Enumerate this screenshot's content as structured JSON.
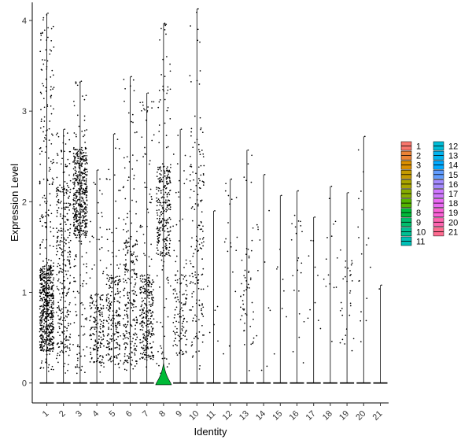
{
  "chart_data": {
    "type": "violin",
    "title": "",
    "xlabel": "Identity",
    "ylabel": "Expression Level",
    "categories": [
      "1",
      "2",
      "3",
      "4",
      "5",
      "6",
      "7",
      "8",
      "9",
      "10",
      "11",
      "12",
      "13",
      "14",
      "15",
      "16",
      "17",
      "18",
      "19",
      "20",
      "21"
    ],
    "ylim": [
      -0.22,
      4.2
    ],
    "yticks": [
      0,
      1,
      2,
      3,
      4
    ],
    "grid": false,
    "legend_position": "right",
    "colors": [
      "#F8766D",
      "#EB8335",
      "#DA8F00",
      "#C49A00",
      "#A9A400",
      "#86AC00",
      "#53B400",
      "#00BA38",
      "#00BE6C",
      "#00C094",
      "#00C0B7",
      "#00BCD6",
      "#00B4EF",
      "#00A9FF",
      "#619CFF",
      "#A58AFF",
      "#D078FF",
      "#EB6AF4",
      "#FB61D7",
      "#FF64B0",
      "#FF6C91"
    ],
    "violin_shape_note": "Cluster 8 violin shows a visible green bulge near 0; others collapse to a line at 0",
    "series": [
      {
        "name": "1",
        "max": 4.08,
        "n_points": 700,
        "dense_lo": 0.35,
        "dense_hi": 1.3
      },
      {
        "name": "2",
        "max": 2.8,
        "n_points": 320,
        "dense_lo": 0.3,
        "dense_hi": 2.2
      },
      {
        "name": "3",
        "max": 3.33,
        "n_points": 520,
        "dense_lo": 1.6,
        "dense_hi": 2.6
      },
      {
        "name": "4",
        "max": 2.35,
        "n_points": 180,
        "dense_lo": 0.2,
        "dense_hi": 1.0
      },
      {
        "name": "5",
        "max": 2.75,
        "n_points": 220,
        "dense_lo": 0.2,
        "dense_hi": 1.2
      },
      {
        "name": "6",
        "max": 3.38,
        "n_points": 260,
        "dense_lo": 0.2,
        "dense_hi": 1.6
      },
      {
        "name": "7",
        "max": 3.2,
        "n_points": 300,
        "dense_lo": 0.25,
        "dense_hi": 1.2
      },
      {
        "name": "8",
        "max": 3.97,
        "n_points": 320,
        "dense_lo": 1.4,
        "dense_hi": 2.4
      },
      {
        "name": "9",
        "max": 2.8,
        "n_points": 130,
        "dense_lo": 0.3,
        "dense_hi": 1.2
      },
      {
        "name": "10",
        "max": 4.13,
        "n_points": 170,
        "dense_lo": 0.4,
        "dense_hi": 2.6
      },
      {
        "name": "11",
        "max": 1.9,
        "n_points": 6,
        "dense_lo": 0.4,
        "dense_hi": 1.2
      },
      {
        "name": "12",
        "max": 2.25,
        "n_points": 18,
        "dense_lo": 1.2,
        "dense_hi": 2.2
      },
      {
        "name": "13",
        "max": 2.57,
        "n_points": 55,
        "dense_lo": 0.4,
        "dense_hi": 1.5
      },
      {
        "name": "14",
        "max": 2.3,
        "n_points": 12,
        "dense_lo": 0.8,
        "dense_hi": 2.0
      },
      {
        "name": "15",
        "max": 2.07,
        "n_points": 8,
        "dense_lo": 0.5,
        "dense_hi": 1.8
      },
      {
        "name": "16",
        "max": 2.12,
        "n_points": 22,
        "dense_lo": 0.5,
        "dense_hi": 2.0
      },
      {
        "name": "17",
        "max": 1.83,
        "n_points": 10,
        "dense_lo": 0.6,
        "dense_hi": 1.8
      },
      {
        "name": "18",
        "max": 2.17,
        "n_points": 14,
        "dense_lo": 0.4,
        "dense_hi": 1.8
      },
      {
        "name": "19",
        "max": 2.1,
        "n_points": 30,
        "dense_lo": 0.2,
        "dense_hi": 1.4
      },
      {
        "name": "20",
        "max": 2.72,
        "n_points": 18,
        "dense_lo": 0.6,
        "dense_hi": 2.6
      },
      {
        "name": "21",
        "max": 1.08,
        "n_points": 1,
        "dense_lo": 1.0,
        "dense_hi": 1.08
      }
    ]
  }
}
